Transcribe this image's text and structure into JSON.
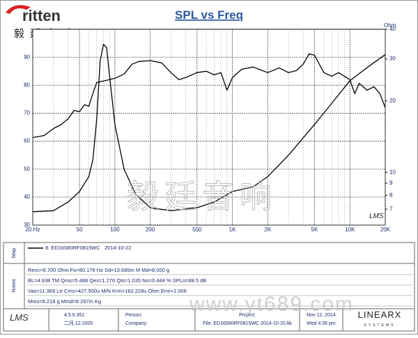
{
  "logo": {
    "text": "ritten",
    "chinese": "毅廷音响"
  },
  "watermark": {
    "chinese": "毅廷音响",
    "url": "www.yt689.com",
    "software": "LMS"
  },
  "chart_data": {
    "type": "line",
    "title": "SPL vs Freq",
    "xlog": true,
    "y2log": true,
    "grid": true,
    "minor_grid": true,
    "xlim": [
      20,
      20000
    ],
    "xticks": [
      {
        "value": 20,
        "label": "20 Hz"
      },
      50,
      100,
      200,
      500,
      {
        "value": 1000,
        "label": "1K"
      },
      {
        "value": 2000,
        "label": "2K"
      },
      {
        "value": 5000,
        "label": "5K"
      },
      {
        "value": 10000,
        "label": "10K"
      },
      {
        "value": 20000,
        "label": "20K"
      }
    ],
    "ylim": [
      30,
      100
    ],
    "yticks": [
      30,
      40,
      50,
      60,
      70,
      80,
      90
    ],
    "y2label": "Ohm",
    "y2lim": [
      6,
      40
    ],
    "y2ticks": [
      7,
      8,
      9,
      10,
      20,
      30,
      40
    ],
    "series": [
      {
        "color": "#000000",
        "x": [
          20,
          25,
          30,
          35,
          40,
          45,
          50,
          55,
          60,
          65,
          70,
          80,
          90,
          100,
          120,
          140,
          160,
          200,
          250,
          300,
          350,
          400,
          500,
          600,
          700,
          800,
          900,
          1000,
          1200,
          1500,
          2000,
          2500,
          3000,
          3500,
          4000,
          4500,
          5000,
          6000,
          7000,
          8000,
          10000,
          11000,
          12000,
          14000,
          16000,
          18000,
          20000
        ],
        "values": [
          61.3,
          62,
          64.5,
          66,
          68,
          71,
          70.5,
          73,
          72.5,
          77,
          81,
          81.5,
          82,
          82.5,
          84,
          87.5,
          88.5,
          88.8,
          88,
          84.5,
          82,
          82.7,
          84.5,
          85,
          83.7,
          84.5,
          78.2,
          82.7,
          85.7,
          86.5,
          84.5,
          86.2,
          84.5,
          85.2,
          87.5,
          91.2,
          90.7,
          84.5,
          83.2,
          84.5,
          82,
          77,
          80.7,
          78.2,
          79.5,
          77,
          72
        ]
      },
      {
        "color": "#000000",
        "axis": "y2",
        "x": [
          20,
          30,
          40,
          50,
          60,
          65,
          70,
          75,
          80,
          85,
          90,
          100,
          120,
          150,
          200,
          300,
          500,
          700,
          1000,
          1500,
          2000,
          3000,
          5000,
          7000,
          10000,
          15000,
          20000
        ],
        "values": [
          6.83,
          6.9,
          7.5,
          8.3,
          9.6,
          11.3,
          16.7,
          29.5,
          34.6,
          33.5,
          25.6,
          15.9,
          10.3,
          8.1,
          7.1,
          6.9,
          7.1,
          7.5,
          8.3,
          8.7,
          9.6,
          11.8,
          15.9,
          19.5,
          24.3,
          28.3,
          31.3
        ]
      }
    ]
  },
  "map": {
    "label": "Map",
    "entry": "8: ED16580RF0815WC",
    "date": "2014-10-22"
  },
  "notes": {
    "label": "Notes",
    "lines": [
      "Revc=6.700 Ohm  Fo=80.176 Hz  Sd=13.685m M  Md=8.000 g",
      "BL=4.938 TM  Qms=5.488  Qes=1.276  Qts=1.035  No=0.444 %  SPLo=88.5 dB",
      "Vas=11.369 Ltr  Cms=427.500u M/N  Krm=162.228u Ohm  Erm=1.006",
      "Mms=9.218 g  Mmd=8.297m Kg"
    ]
  },
  "footer": {
    "logo": "LMS",
    "version": "4.5.0.351",
    "version_date": "二月.12.2005",
    "person": "Person:",
    "company": "Company:",
    "project": "Project:",
    "file": "File: ED16580RF0815WC   2014-10-20.lib",
    "date": "Nov 12, 2014",
    "time": "Wed  4:35 pm",
    "brand": "LINEARX",
    "brand_sub": "SYSTEMS"
  }
}
